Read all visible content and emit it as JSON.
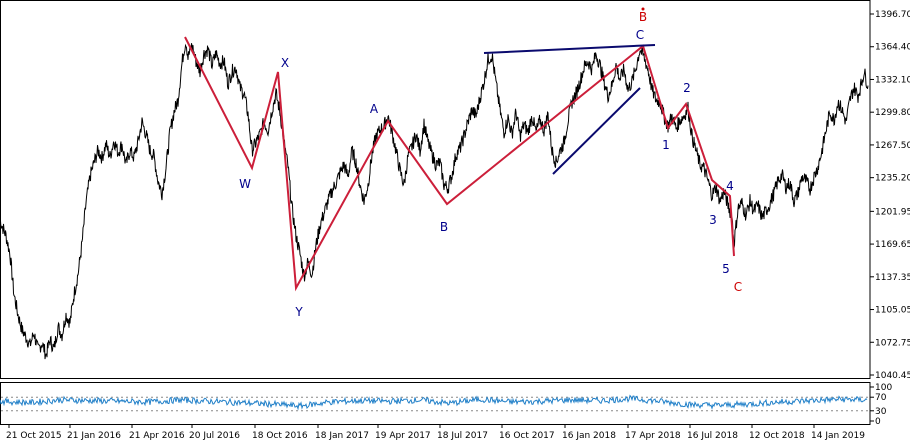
{
  "chart_data": {
    "type": "line",
    "series": [
      {
        "values": [
          [
            0,
            1193
          ],
          [
            6,
            1178
          ],
          [
            10,
            1160
          ],
          [
            14,
            1120
          ],
          [
            18,
            1100
          ],
          [
            22,
            1085
          ],
          [
            26,
            1078
          ],
          [
            30,
            1070
          ],
          [
            34,
            1082
          ],
          [
            38,
            1065
          ],
          [
            42,
            1072
          ],
          [
            46,
            1060
          ],
          [
            50,
            1075
          ],
          [
            54,
            1066
          ],
          [
            58,
            1088
          ],
          [
            62,
            1080
          ],
          [
            66,
            1100
          ],
          [
            70,
            1092
          ],
          [
            74,
            1120
          ],
          [
            78,
            1140
          ],
          [
            82,
            1170
          ],
          [
            86,
            1210
          ],
          [
            90,
            1236
          ],
          [
            94,
            1250
          ],
          [
            98,
            1262
          ],
          [
            102,
            1255
          ],
          [
            106,
            1268
          ],
          [
            110,
            1256
          ],
          [
            114,
            1272
          ],
          [
            118,
            1260
          ],
          [
            122,
            1268
          ],
          [
            126,
            1248
          ],
          [
            130,
            1262
          ],
          [
            134,
            1255
          ],
          [
            138,
            1270
          ],
          [
            142,
            1290
          ],
          [
            146,
            1278
          ],
          [
            150,
            1262
          ],
          [
            154,
            1256
          ],
          [
            158,
            1232
          ],
          [
            162,
            1220
          ],
          [
            166,
            1245
          ],
          [
            170,
            1280
          ],
          [
            174,
            1300
          ],
          [
            178,
            1312
          ],
          [
            182,
            1348
          ],
          [
            184,
            1362
          ],
          [
            186,
            1370
          ],
          [
            188,
            1354
          ],
          [
            192,
            1366
          ],
          [
            196,
            1350
          ],
          [
            200,
            1340
          ],
          [
            204,
            1358
          ],
          [
            208,
            1362
          ],
          [
            212,
            1346
          ],
          [
            216,
            1358
          ],
          [
            220,
            1348
          ],
          [
            224,
            1350
          ],
          [
            228,
            1328
          ],
          [
            232,
            1340
          ],
          [
            236,
            1344
          ],
          [
            240,
            1324
          ],
          [
            244,
            1318
          ],
          [
            248,
            1298
          ],
          [
            252,
            1262
          ],
          [
            256,
            1270
          ],
          [
            260,
            1278
          ],
          [
            264,
            1290
          ],
          [
            268,
            1282
          ],
          [
            272,
            1302
          ],
          [
            276,
            1318
          ],
          [
            280,
            1300
          ],
          [
            284,
            1270
          ],
          [
            288,
            1246
          ],
          [
            292,
            1205
          ],
          [
            296,
            1178
          ],
          [
            300,
            1160
          ],
          [
            304,
            1138
          ],
          [
            308,
            1152
          ],
          [
            312,
            1140
          ],
          [
            316,
            1168
          ],
          [
            320,
            1188
          ],
          [
            324,
            1200
          ],
          [
            328,
            1212
          ],
          [
            332,
            1222
          ],
          [
            336,
            1230
          ],
          [
            340,
            1240
          ],
          [
            344,
            1248
          ],
          [
            348,
            1236
          ],
          [
            352,
            1262
          ],
          [
            356,
            1250
          ],
          [
            360,
            1228
          ],
          [
            364,
            1212
          ],
          [
            368,
            1228
          ],
          [
            372,
            1258
          ],
          [
            376,
            1276
          ],
          [
            380,
            1282
          ],
          [
            384,
            1286
          ],
          [
            388,
            1296
          ],
          [
            392,
            1280
          ],
          [
            396,
            1262
          ],
          [
            400,
            1242
          ],
          [
            404,
            1228
          ],
          [
            408,
            1256
          ],
          [
            412,
            1266
          ],
          [
            416,
            1278
          ],
          [
            420,
            1262
          ],
          [
            424,
            1288
          ],
          [
            428,
            1270
          ],
          [
            432,
            1258
          ],
          [
            436,
            1248
          ],
          [
            440,
            1250
          ],
          [
            444,
            1228
          ],
          [
            448,
            1225
          ],
          [
            452,
            1238
          ],
          [
            456,
            1258
          ],
          [
            460,
            1264
          ],
          [
            464,
            1276
          ],
          [
            468,
            1290
          ],
          [
            472,
            1302
          ],
          [
            476,
            1296
          ],
          [
            480,
            1314
          ],
          [
            484,
            1330
          ],
          [
            488,
            1352
          ],
          [
            492,
            1356
          ],
          [
            496,
            1328
          ],
          [
            500,
            1302
          ],
          [
            504,
            1280
          ],
          [
            508,
            1294
          ],
          [
            512,
            1278
          ],
          [
            516,
            1300
          ],
          [
            520,
            1276
          ],
          [
            524,
            1288
          ],
          [
            528,
            1280
          ],
          [
            532,
            1296
          ],
          [
            536,
            1280
          ],
          [
            540,
            1292
          ],
          [
            544,
            1282
          ],
          [
            548,
            1298
          ],
          [
            552,
            1262
          ],
          [
            556,
            1250
          ],
          [
            560,
            1262
          ],
          [
            564,
            1270
          ],
          [
            568,
            1292
          ],
          [
            572,
            1310
          ],
          [
            576,
            1318
          ],
          [
            580,
            1330
          ],
          [
            584,
            1344
          ],
          [
            588,
            1350
          ],
          [
            592,
            1342
          ],
          [
            596,
            1358
          ],
          [
            600,
            1346
          ],
          [
            604,
            1330
          ],
          [
            608,
            1316
          ],
          [
            612,
            1326
          ],
          [
            616,
            1346
          ],
          [
            620,
            1332
          ],
          [
            624,
            1342
          ],
          [
            628,
            1322
          ],
          [
            632,
            1330
          ],
          [
            636,
            1344
          ],
          [
            640,
            1362
          ],
          [
            644,
            1354
          ],
          [
            648,
            1342
          ],
          [
            652,
            1322
          ],
          [
            656,
            1312
          ],
          [
            660,
            1310
          ],
          [
            664,
            1296
          ],
          [
            668,
            1286
          ],
          [
            672,
            1296
          ],
          [
            676,
            1284
          ],
          [
            680,
            1292
          ],
          [
            684,
            1296
          ],
          [
            688,
            1304
          ],
          [
            692,
            1276
          ],
          [
            696,
            1262
          ],
          [
            700,
            1248
          ],
          [
            704,
            1244
          ],
          [
            708,
            1232
          ],
          [
            712,
            1218
          ],
          [
            716,
            1226
          ],
          [
            720,
            1212
          ],
          [
            724,
            1222
          ],
          [
            728,
            1208
          ],
          [
            732,
            1196
          ],
          [
            734,
            1170
          ],
          [
            738,
            1205
          ],
          [
            742,
            1210
          ],
          [
            746,
            1198
          ],
          [
            750,
            1212
          ],
          [
            754,
            1202
          ],
          [
            758,
            1208
          ],
          [
            762,
            1196
          ],
          [
            766,
            1202
          ],
          [
            770,
            1210
          ],
          [
            774,
            1220
          ],
          [
            778,
            1232
          ],
          [
            782,
            1238
          ],
          [
            786,
            1226
          ],
          [
            790,
            1230
          ],
          [
            794,
            1212
          ],
          [
            798,
            1220
          ],
          [
            802,
            1236
          ],
          [
            806,
            1232
          ],
          [
            810,
            1224
          ],
          [
            814,
            1236
          ],
          [
            818,
            1246
          ],
          [
            822,
            1262
          ],
          [
            826,
            1282
          ],
          [
            830,
            1300
          ],
          [
            834,
            1292
          ],
          [
            838,
            1310
          ],
          [
            842,
            1302
          ],
          [
            846,
            1290
          ],
          [
            850,
            1312
          ],
          [
            854,
            1324
          ],
          [
            858,
            1316
          ],
          [
            862,
            1330
          ],
          [
            864,
            1340
          ],
          [
            868,
            1326
          ]
        ]
      },
      {
        "values": [
          [
            0,
            58
          ],
          [
            30,
            54
          ],
          [
            60,
            62
          ],
          [
            90,
            60
          ],
          [
            120,
            58
          ],
          [
            150,
            56
          ],
          [
            180,
            62
          ],
          [
            210,
            58
          ],
          [
            240,
            54
          ],
          [
            270,
            50
          ],
          [
            300,
            44
          ],
          [
            330,
            56
          ],
          [
            360,
            60
          ],
          [
            390,
            58
          ],
          [
            420,
            62
          ],
          [
            450,
            52
          ],
          [
            480,
            64
          ],
          [
            510,
            56
          ],
          [
            540,
            58
          ],
          [
            570,
            62
          ],
          [
            600,
            60
          ],
          [
            630,
            66
          ],
          [
            660,
            58
          ],
          [
            690,
            48
          ],
          [
            720,
            46
          ],
          [
            750,
            50
          ],
          [
            780,
            56
          ],
          [
            810,
            60
          ],
          [
            840,
            64
          ],
          [
            868,
            62
          ]
        ]
      }
    ],
    "price_axis": {
      "ticks": [
        "1396.70",
        "1364.40",
        "1332.10",
        "1299.80",
        "1267.50",
        "1235.20",
        "1201.95",
        "1169.65",
        "1137.35",
        "1105.05",
        "1072.75",
        "1040.45"
      ]
    },
    "oscillator_axis": {
      "ticks": [
        "100",
        "70",
        "30",
        "0"
      ]
    },
    "x_ticks": [
      "21 Oct 2015",
      "21 Jan 2016",
      "21 Apr 2016",
      "20 Jul 2016",
      "18 Oct 2016",
      "18 Jan 2017",
      "19 Apr 2017",
      "18 Jul 2017",
      "16 Oct 2017",
      "16 Jan 2018",
      "17 Apr 2018",
      "16 Jul 2018",
      "12 Oct 2018",
      "14 Jan 2019"
    ],
    "wave_labels": [
      {
        "text": "W",
        "color": "#00008b"
      },
      {
        "text": "X",
        "color": "#00008b"
      },
      {
        "text": "Y",
        "color": "#00008b"
      },
      {
        "text": "A",
        "color": "#00008b"
      },
      {
        "text": "B",
        "color": "#00008b"
      },
      {
        "text": "C",
        "color": "#00008b"
      },
      {
        "text": "B",
        "color": "#cc0000"
      },
      {
        "text": "1",
        "color": "#00008b"
      },
      {
        "text": "2",
        "color": "#00008b"
      },
      {
        "text": "3",
        "color": "#00008b"
      },
      {
        "text": "4",
        "color": "#00008b"
      },
      {
        "text": "5",
        "color": "#00008b"
      },
      {
        "text": "C",
        "color": "#cc0000"
      }
    ],
    "colors": {
      "price_line": "#000000",
      "wave_line": "#cc1f3a",
      "trend_line": "#0a0a6e",
      "oscillator": "#1f7fc8",
      "oscillator_levels": "#888888"
    }
  }
}
